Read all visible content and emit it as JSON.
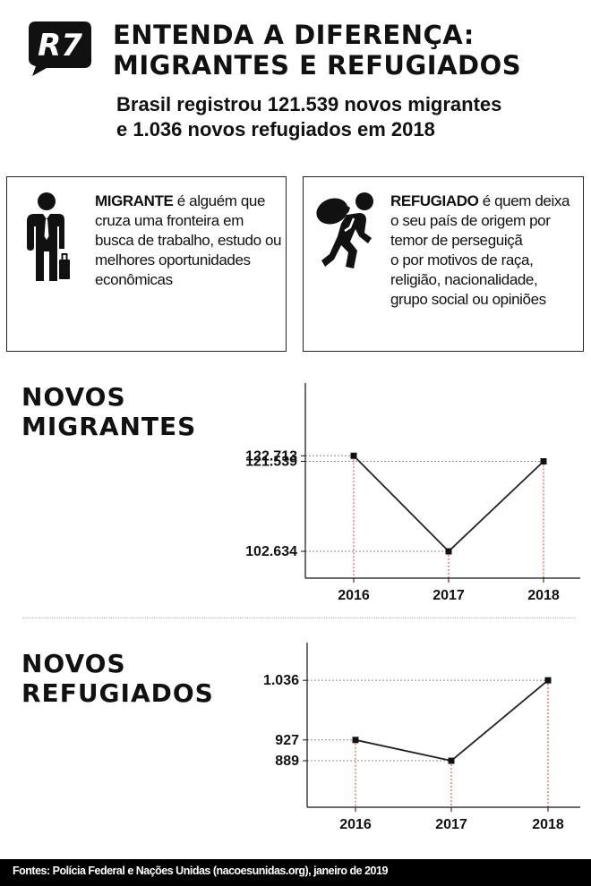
{
  "header": {
    "logo_text": "R7",
    "title_line1": "ENTENDA A DIFERENÇA:",
    "title_line2": "MIGRANTES E REFUGIADOS",
    "subtitle_line1": "Brasil registrou 121.539 novos migrantes",
    "subtitle_line2": "e 1.036 novos refugiados em 2018"
  },
  "definitions": {
    "migrante": {
      "icon": "businessman-with-suitcase-icon",
      "term": "MIGRANTE",
      "lines": [
        " é alguém que",
        "cruza uma fronteira em",
        "busca de trabalho, estudo ou",
        "melhores oportunidades",
        "econômicas"
      ]
    },
    "refugiado": {
      "icon": "person-carrying-sack-icon",
      "term": "REFUGIADO",
      "lines": [
        " é quem deixa",
        "o seu país de origem por",
        "temor de perseguiçã",
        "o por motivos de raça,",
        "religião, nacionalidade,",
        "grupo social ou opiniões"
      ]
    }
  },
  "sections": {
    "migrantes_line1": "NOVOS",
    "migrantes_line2": "MIGRANTES",
    "refugiados_line1": "NOVOS",
    "refugiados_line2": "REFUGIADOS"
  },
  "chart_data": [
    {
      "type": "line",
      "x": [
        "2016",
        "2017",
        "2018"
      ],
      "series": [
        {
          "values": [
            122713,
            102634,
            121539
          ]
        }
      ],
      "y_labels": [
        "122.713",
        "102.634",
        "121.539"
      ],
      "ylim": [
        97000,
        138000
      ],
      "grid": false,
      "colors": {
        "line": "#222222",
        "guide_vertical": "#e0333a",
        "guide_horizontal": "#888888"
      }
    },
    {
      "type": "line",
      "x": [
        "2016",
        "2017",
        "2018"
      ],
      "series": [
        {
          "values": [
            927,
            889,
            1036
          ]
        }
      ],
      "y_labels": [
        "927",
        "889",
        "1.036"
      ],
      "ylim": [
        804,
        1105
      ],
      "grid": false,
      "colors": {
        "line": "#222222",
        "guide_vertical": "#e0333a",
        "guide_horizontal": "#888888"
      }
    }
  ],
  "footer": {
    "source": "Fontes: Polícia Federal e Nações Unidas (nacoesunidas.org), janeiro de 2019"
  }
}
